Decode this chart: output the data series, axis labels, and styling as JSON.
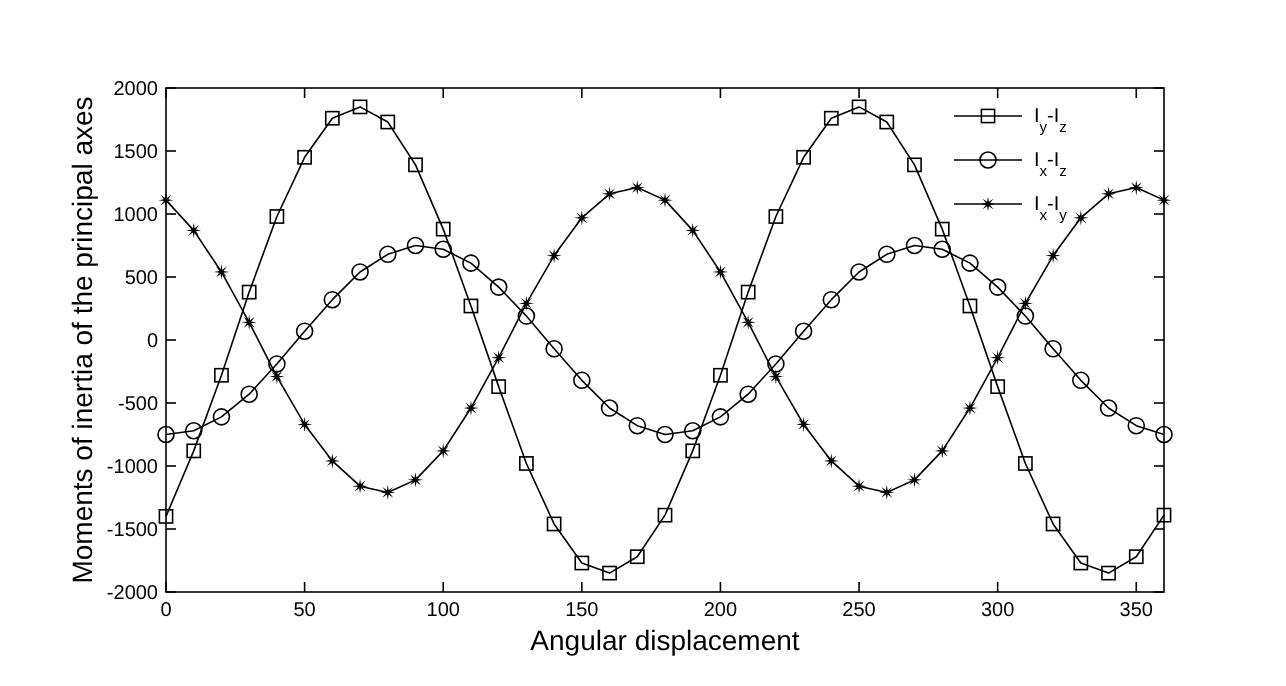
{
  "chart_data": {
    "type": "line",
    "xlabel": "Angular displacement",
    "ylabel": "Moments of inertia of the principal axes",
    "x": [
      0,
      10,
      20,
      30,
      40,
      50,
      60,
      70,
      80,
      90,
      100,
      110,
      120,
      130,
      140,
      150,
      160,
      170,
      180,
      190,
      200,
      210,
      220,
      230,
      240,
      250,
      260,
      270,
      280,
      290,
      300,
      310,
      320,
      330,
      340,
      350,
      360
    ],
    "xlim": [
      0,
      360
    ],
    "xticks": [
      0,
      50,
      100,
      150,
      200,
      250,
      300,
      350
    ],
    "ylim": [
      -2000,
      2000
    ],
    "yticks": [
      -2000,
      -1500,
      -1000,
      -500,
      0,
      500,
      1000,
      1500,
      2000
    ],
    "grid": false,
    "legend": "top right",
    "line_style": "solid",
    "series": [
      {
        "name": "I$_{y}$-I$_{z}$",
        "color": "#000000",
        "marker": "square",
        "values": [
          -1400,
          -880,
          -280,
          380,
          980,
          1450,
          1760,
          1850,
          1730,
          1390,
          880,
          270,
          -370,
          -980,
          -1460,
          -1770,
          -1850,
          -1720,
          -1390,
          -880,
          -280,
          380,
          980,
          1450,
          1760,
          1850,
          1730,
          1390,
          880,
          270,
          -370,
          -980,
          -1460,
          -1770,
          -1850,
          -1720,
          -1390
        ]
      },
      {
        "name": "I$_{x}$-I$_{z}$",
        "color": "#000000",
        "marker": "circle",
        "values": [
          -750,
          -720,
          -610,
          -430,
          -190,
          70,
          320,
          540,
          680,
          750,
          720,
          610,
          420,
          190,
          -70,
          -320,
          -540,
          -680,
          -750,
          -720,
          -610,
          -430,
          -190,
          70,
          320,
          540,
          680,
          750,
          720,
          610,
          420,
          190,
          -70,
          -320,
          -540,
          -680,
          -750
        ]
      },
      {
        "name": "I$_{x}$-I$_{y}$",
        "color": "#000000",
        "marker": "star",
        "values": [
          1110,
          870,
          540,
          140,
          -290,
          -670,
          -960,
          -1160,
          -1210,
          -1110,
          -880,
          -540,
          -140,
          290,
          670,
          970,
          1160,
          1210,
          1110,
          870,
          540,
          140,
          -290,
          -670,
          -960,
          -1160,
          -1210,
          -1110,
          -880,
          -540,
          -140,
          290,
          670,
          970,
          1160,
          1210,
          1110
        ]
      }
    ]
  }
}
